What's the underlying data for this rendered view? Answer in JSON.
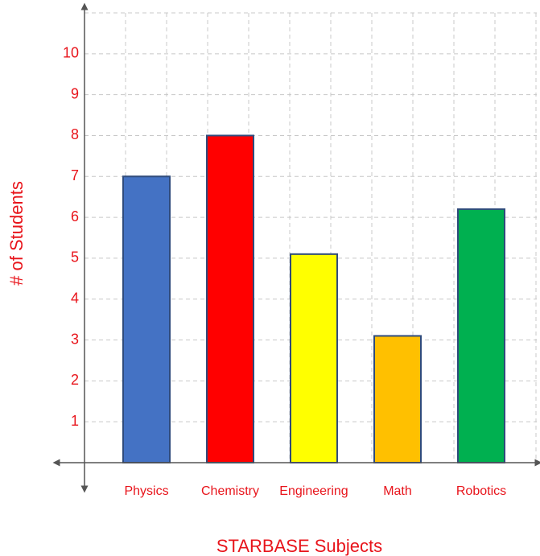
{
  "chart_data": {
    "type": "bar",
    "x_label": "STARBASE Subjects",
    "y_label": "# of Students",
    "categories": [
      "Physics",
      "Chemistry",
      "Engineering",
      "Math",
      "Robotics"
    ],
    "values": [
      7,
      8,
      5.1,
      3.1,
      6.2
    ],
    "colors": [
      "#4472c4",
      "#ff0000",
      "#ffff00",
      "#ffc000",
      "#00b050"
    ],
    "ylim": [
      0,
      11
    ],
    "yticks": [
      1,
      2,
      3,
      4,
      5,
      6,
      7,
      8,
      9,
      10
    ],
    "grid": true
  }
}
